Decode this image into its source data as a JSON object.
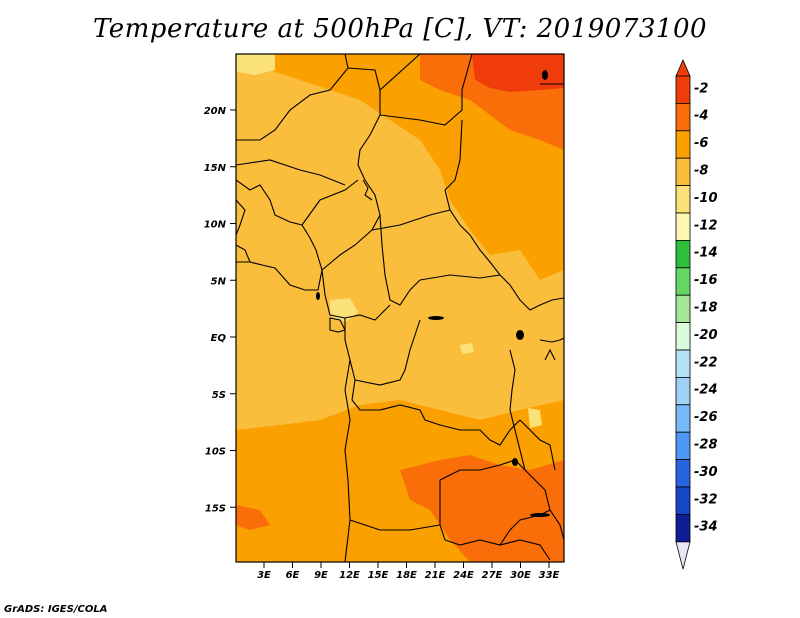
{
  "title": "Temperature at 500hPa [C], VT: 2019073100",
  "footer": "GrADS: IGES/COLA",
  "lat_labels": [
    "20N",
    "15N",
    "10N",
    "5N",
    "EQ",
    "5S",
    "10S",
    "15S"
  ],
  "lon_labels": [
    "3E",
    "6E",
    "9E",
    "12E",
    "15E",
    "18E",
    "21E",
    "24E",
    "27E",
    "30E",
    "33E"
  ],
  "legend": {
    "labels": [
      "-2",
      "-4",
      "-6",
      "-8",
      "-10",
      "-12",
      "-14",
      "-16",
      "-18",
      "-20",
      "-22",
      "-24",
      "-26",
      "-28",
      "-30",
      "-32",
      "-34"
    ],
    "colors": [
      "#f03c0a",
      "#fa6e0a",
      "#faa000",
      "#fabe3c",
      "#fae178",
      "#fff7b4",
      "#2fbe3c",
      "#64d764",
      "#a5e696",
      "#dcfadc",
      "#b3e1f5",
      "#9ed2f5",
      "#78b9fa",
      "#5096f5",
      "#2864e1",
      "#1446c8",
      "#0f1e96",
      "#dcdcf0"
    ],
    "top_arrow_color": "#f03c0a",
    "bottom_arrow_color": "#e6e6f5"
  },
  "map_colors": {
    "base": "#fabe3c",
    "warm": "#faa000",
    "warmer": "#fa6e0a",
    "hottest": "#f03c0a",
    "cool": "#fae178",
    "coolest": "#fff7b4"
  }
}
